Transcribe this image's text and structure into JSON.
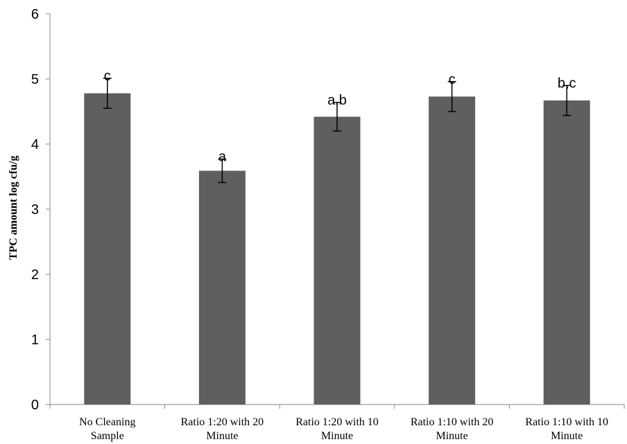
{
  "chart_data": {
    "type": "bar",
    "title": "",
    "xlabel": "",
    "ylabel": "TPC amount log cfu/g",
    "ylim": [
      0,
      6
    ],
    "yticks": [
      "0",
      "1",
      "2",
      "3",
      "4",
      "5",
      "6"
    ],
    "grid": false,
    "categories": [
      [
        "No Cleaning",
        "Sample"
      ],
      [
        "Ratio 1:20 with 20",
        "Minute"
      ],
      [
        "Ratio 1:20 with 10",
        "Minute"
      ],
      [
        "Ratio 1:10 with 20",
        "Minute"
      ],
      [
        "Ratio 1:10 with 10",
        "Minute"
      ]
    ],
    "values": [
      4.78,
      3.59,
      4.42,
      4.73,
      4.67
    ],
    "errors": [
      0.23,
      0.18,
      0.22,
      0.23,
      0.23
    ],
    "significance_labels": [
      "c",
      "a",
      "a,b",
      "c",
      "b,c"
    ],
    "bar_color": "#5f5f5f",
    "error_bar_color": "#000000",
    "axis_color": "#868686"
  }
}
